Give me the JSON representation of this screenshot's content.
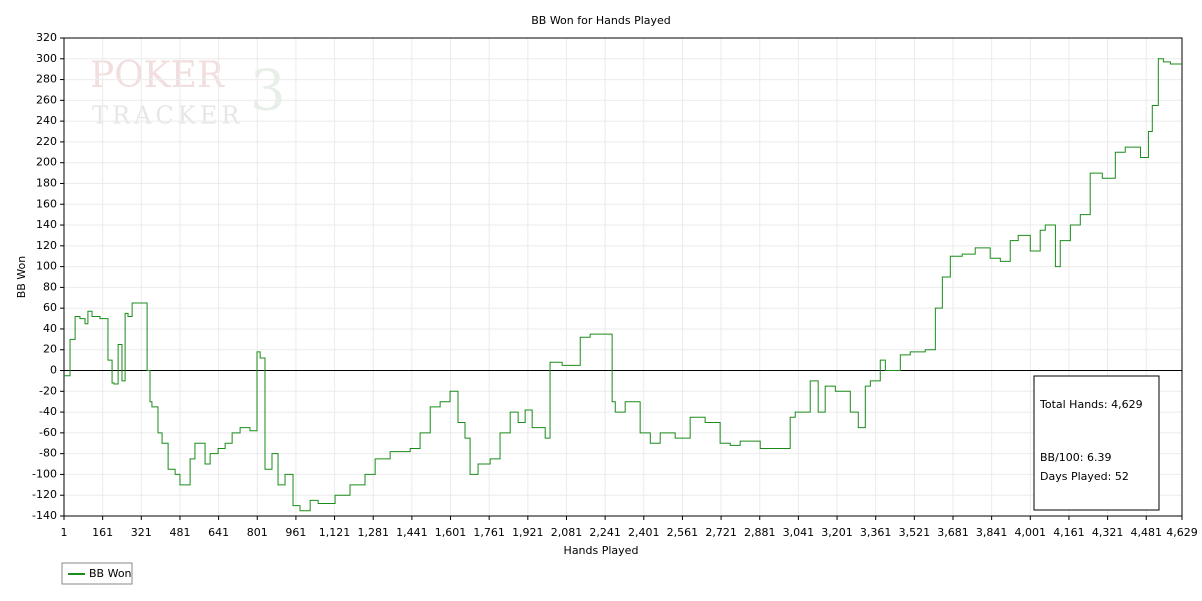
{
  "chart_data": {
    "type": "line",
    "title": "BB Won for Hands Played",
    "x_label": "Hands Played",
    "y_label": "BB Won",
    "watermark": [
      "POKER",
      "TRACKER",
      "3"
    ],
    "x": [
      1,
      26,
      47,
      67,
      88,
      100,
      117,
      150,
      183,
      200,
      208,
      225,
      241,
      254,
      266,
      283,
      307,
      345,
      357,
      365,
      390,
      407,
      432,
      461,
      481,
      523,
      543,
      585,
      606,
      639,
      668,
      697,
      730,
      771,
      800,
      813,
      833,
      862,
      887,
      916,
      949,
      978,
      1020,
      1053,
      1123,
      1185,
      1247,
      1289,
      1351,
      1434,
      1475,
      1517,
      1558,
      1599,
      1632,
      1661,
      1682,
      1715,
      1765,
      1806,
      1848,
      1881,
      1910,
      1939,
      1993,
      2013,
      2063,
      2138,
      2179,
      2220,
      2270,
      2283,
      2324,
      2386,
      2428,
      2469,
      2531,
      2593,
      2655,
      2717,
      2759,
      2800,
      2883,
      2966,
      3007,
      3028,
      3090,
      3123,
      3152,
      3194,
      3256,
      3289,
      3318,
      3339,
      3380,
      3401,
      3463,
      3504,
      3566,
      3608,
      3637,
      3670,
      3719,
      3773,
      3835,
      3877,
      3918,
      3951,
      4001,
      4042,
      4063,
      4105,
      4125,
      4167,
      4208,
      4249,
      4299,
      4353,
      4394,
      4457,
      4490,
      4506,
      4531,
      4552,
      4581,
      4629
    ],
    "series": [
      {
        "name": "BB Won",
        "color": "#1a8c1a",
        "values": [
          -5,
          -5,
          30,
          52,
          50,
          45,
          57,
          52,
          50,
          10,
          -12,
          -13,
          25,
          -10,
          55,
          52,
          65,
          65,
          0,
          -30,
          -35,
          -60,
          -70,
          -95,
          -100,
          -110,
          -85,
          -70,
          -90,
          -80,
          -75,
          -70,
          -60,
          -55,
          -58,
          18,
          12,
          -95,
          -80,
          -110,
          -100,
          -130,
          -135,
          -125,
          -128,
          -120,
          -110,
          -100,
          -85,
          -78,
          -75,
          -60,
          -35,
          -30,
          -20,
          -50,
          -65,
          -100,
          -90,
          -85,
          -60,
          -40,
          -50,
          -38,
          -55,
          -65,
          8,
          5,
          32,
          35,
          35,
          -30,
          -40,
          -30,
          -60,
          -70,
          -60,
          -65,
          -45,
          -50,
          -70,
          -72,
          -68,
          -75,
          -75,
          -45,
          -40,
          -10,
          -40,
          -15,
          -20,
          -40,
          -55,
          -15,
          -10,
          10,
          0,
          15,
          18,
          20,
          60,
          90,
          110,
          112,
          118,
          108,
          105,
          125,
          130,
          115,
          135,
          140,
          100,
          125,
          140,
          150,
          190,
          185,
          210,
          215,
          205,
          230,
          255,
          300,
          297,
          295
        ]
      }
    ],
    "xlim": [
      1,
      4629
    ],
    "ylim": [
      -140,
      320
    ],
    "xticks": [
      1,
      161,
      321,
      481,
      641,
      801,
      961,
      {
        "value": 1121,
        "label": "1,121"
      },
      {
        "value": 1281,
        "label": "1,281"
      },
      {
        "value": 1441,
        "label": "1,441"
      },
      {
        "value": 1601,
        "label": "1,601"
      },
      {
        "value": 1761,
        "label": "1,761"
      },
      {
        "value": 1921,
        "label": "1,921"
      },
      {
        "value": 2081,
        "label": "2,081"
      },
      {
        "value": 2241,
        "label": "2,241"
      },
      {
        "value": 2401,
        "label": "2,401"
      },
      {
        "value": 2561,
        "label": "2,561"
      },
      {
        "value": 2721,
        "label": "2,721"
      },
      {
        "value": 2881,
        "label": "2,881"
      },
      {
        "value": 3041,
        "label": "3,041"
      },
      {
        "value": 3201,
        "label": "3,201"
      },
      {
        "value": 3361,
        "label": "3,361"
      },
      {
        "value": 3521,
        "label": "3,521"
      },
      {
        "value": 3681,
        "label": "3,681"
      },
      {
        "value": 3841,
        "label": "3,841"
      },
      {
        "value": 4001,
        "label": "4,001"
      },
      {
        "value": 4161,
        "label": "4,161"
      },
      {
        "value": 4321,
        "label": "4,321"
      },
      {
        "value": 4481,
        "label": "4,481"
      },
      {
        "value": 4629,
        "label": "4,629"
      }
    ],
    "yticks": [
      -140,
      -120,
      -100,
      -80,
      -60,
      -40,
      -20,
      0,
      20,
      40,
      60,
      80,
      100,
      120,
      140,
      160,
      180,
      200,
      220,
      240,
      260,
      280,
      300,
      320
    ],
    "grid": true,
    "zero_line": true,
    "stats": [
      "Total Hands: 4,629",
      "BB/100: 6.39",
      "Days Played: 52"
    ]
  }
}
